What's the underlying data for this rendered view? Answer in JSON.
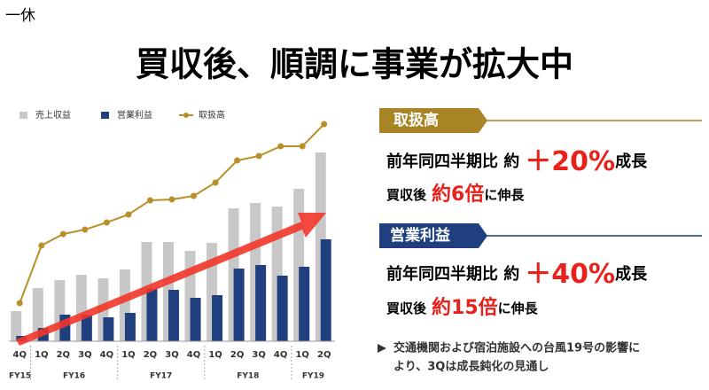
{
  "company": "一休",
  "headline": "買収後、順調に事業が拡大中",
  "chart_data": {
    "type": "bar-line",
    "categories": [
      "4Q",
      "1Q",
      "2Q",
      "3Q",
      "4Q",
      "1Q",
      "2Q",
      "3Q",
      "4Q",
      "1Q",
      "2Q",
      "3Q",
      "4Q",
      "1Q",
      "2Q"
    ],
    "category_groups": [
      {
        "label": "FY15",
        "size": 1
      },
      {
        "label": "FY16",
        "size": 4
      },
      {
        "label": "FY17",
        "size": 4
      },
      {
        "label": "FY18",
        "size": 4
      },
      {
        "label": "FY19",
        "size": 2
      }
    ],
    "ylim": [
      0,
      260
    ],
    "series": [
      {
        "name": "売上収益",
        "type": "bar",
        "color": "#c8c8c8",
        "values": [
          34,
          60,
          69,
          75,
          71,
          81,
          112,
          112,
          102,
          111,
          150,
          156,
          152,
          172,
          213
        ]
      },
      {
        "name": "営業利益",
        "type": "bar",
        "color": "#1f3f7f",
        "values": [
          6,
          15,
          30,
          30,
          27,
          32,
          59,
          58,
          49,
          52,
          82,
          86,
          74,
          84,
          115
        ]
      },
      {
        "name": "取扱高",
        "type": "line",
        "color": "#b8902a",
        "values": [
          43,
          108,
          121,
          126,
          134,
          143,
          159,
          160,
          164,
          179,
          204,
          209,
          220,
          220,
          245
        ]
      }
    ]
  },
  "panels": [
    {
      "title": "取扱高",
      "line1": {
        "prefix": "前年同四半期比 約",
        "highlight": "＋20%",
        "suffix": "成長"
      },
      "line2": {
        "prefix": "買収後",
        "highlight": "約6倍",
        "suffix": "に伸長"
      }
    },
    {
      "title": "営業利益",
      "line1": {
        "prefix": "前年同四半期比 約",
        "highlight": "＋40%",
        "suffix": "成長"
      },
      "line2": {
        "prefix": "買収後",
        "highlight": "約15倍",
        "suffix": "に伸長"
      }
    }
  ],
  "note": [
    "交通機関および宿泊施設への台風19号の影響に",
    "より、3Qは成長鈍化の見通し"
  ]
}
